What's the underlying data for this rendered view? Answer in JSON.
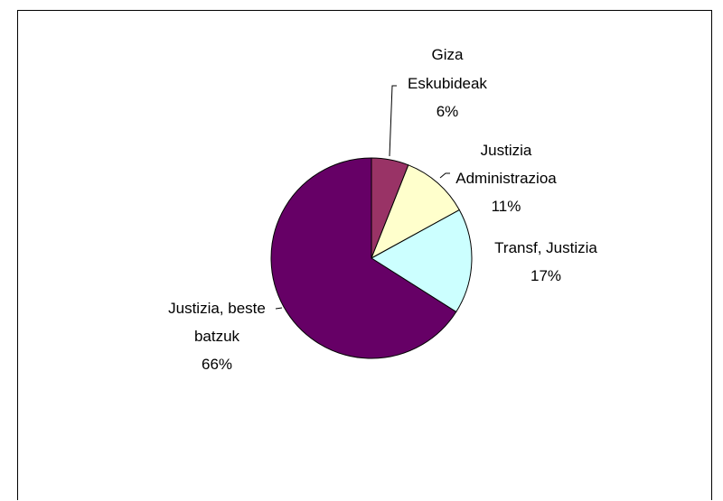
{
  "chart_data": {
    "type": "pie",
    "title": "",
    "slices": [
      {
        "label": "Giza Eskubideak",
        "value": 6,
        "pct_text": "6%",
        "color": "#993366"
      },
      {
        "label": "Justizia Administrazioa",
        "value": 11,
        "pct_text": "11%",
        "color": "#ffffcc"
      },
      {
        "label": "Transf, Justizia",
        "value": 17,
        "pct_text": "17%",
        "color": "#ccffff"
      },
      {
        "label": "Justizia, beste batzuk",
        "value": 66,
        "pct_text": "66%",
        "color": "#660066"
      }
    ],
    "label_lines": [
      [
        "Giza",
        "Eskubideak",
        "6%"
      ],
      [
        "Justizia",
        "Administrazioa",
        "11%"
      ],
      [
        "Transf, Justizia",
        "17%"
      ],
      [
        "Justizia, beste",
        "batzuk",
        "66%"
      ]
    ],
    "start_angle": "12 o'clock",
    "direction": "clockwise",
    "legend": "none",
    "border_color": "#000000"
  }
}
